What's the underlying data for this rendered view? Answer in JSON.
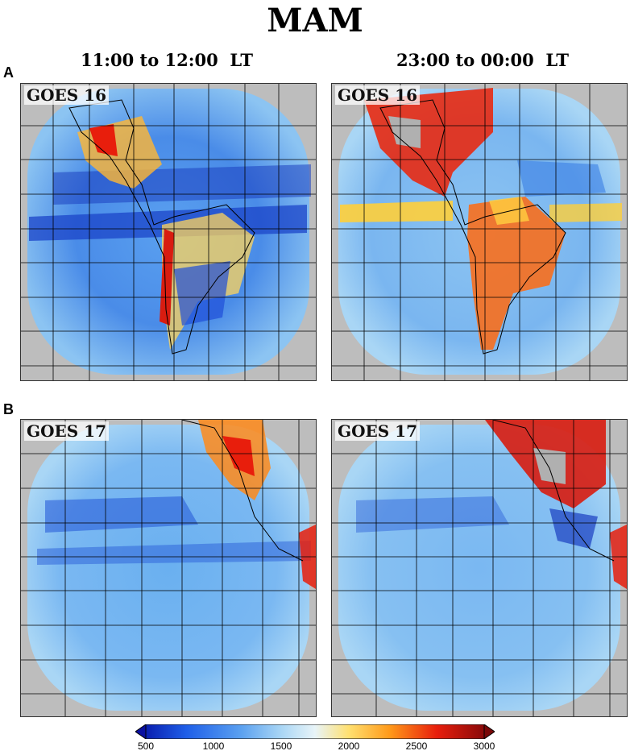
{
  "figure": {
    "title": "MAM",
    "column_titles": [
      "11:00 to 12:00  LT",
      "23:00 to 00:00  LT"
    ],
    "row_labels": [
      "A",
      "B"
    ]
  },
  "panels": [
    {
      "satellite": "GOES 16",
      "time": "11:00 to 12:00  LT",
      "row": "A"
    },
    {
      "satellite": "GOES 16",
      "time": "23:00 to 00:00  LT",
      "row": "A"
    },
    {
      "satellite": "GOES 17",
      "time": "11:00 to 12:00  LT",
      "row": "B"
    },
    {
      "satellite": "GOES 17",
      "time": "23:00 to 00:00  LT",
      "row": "B"
    }
  ],
  "colorbar": {
    "min": 500,
    "max": 3000,
    "ticks": [
      "500",
      "1000",
      "1500",
      "2000",
      "2500",
      "3000"
    ],
    "extend": "both",
    "colors": [
      "#0a1fb0",
      "#1f5fe8",
      "#5aa0f0",
      "#a9d6f5",
      "#e8f4f8",
      "#ffe070",
      "#ff9a1a",
      "#e81e0c",
      "#8a0a0a"
    ]
  },
  "colors": {
    "background_fill": "#bdbdbd",
    "grid": "#000000"
  }
}
